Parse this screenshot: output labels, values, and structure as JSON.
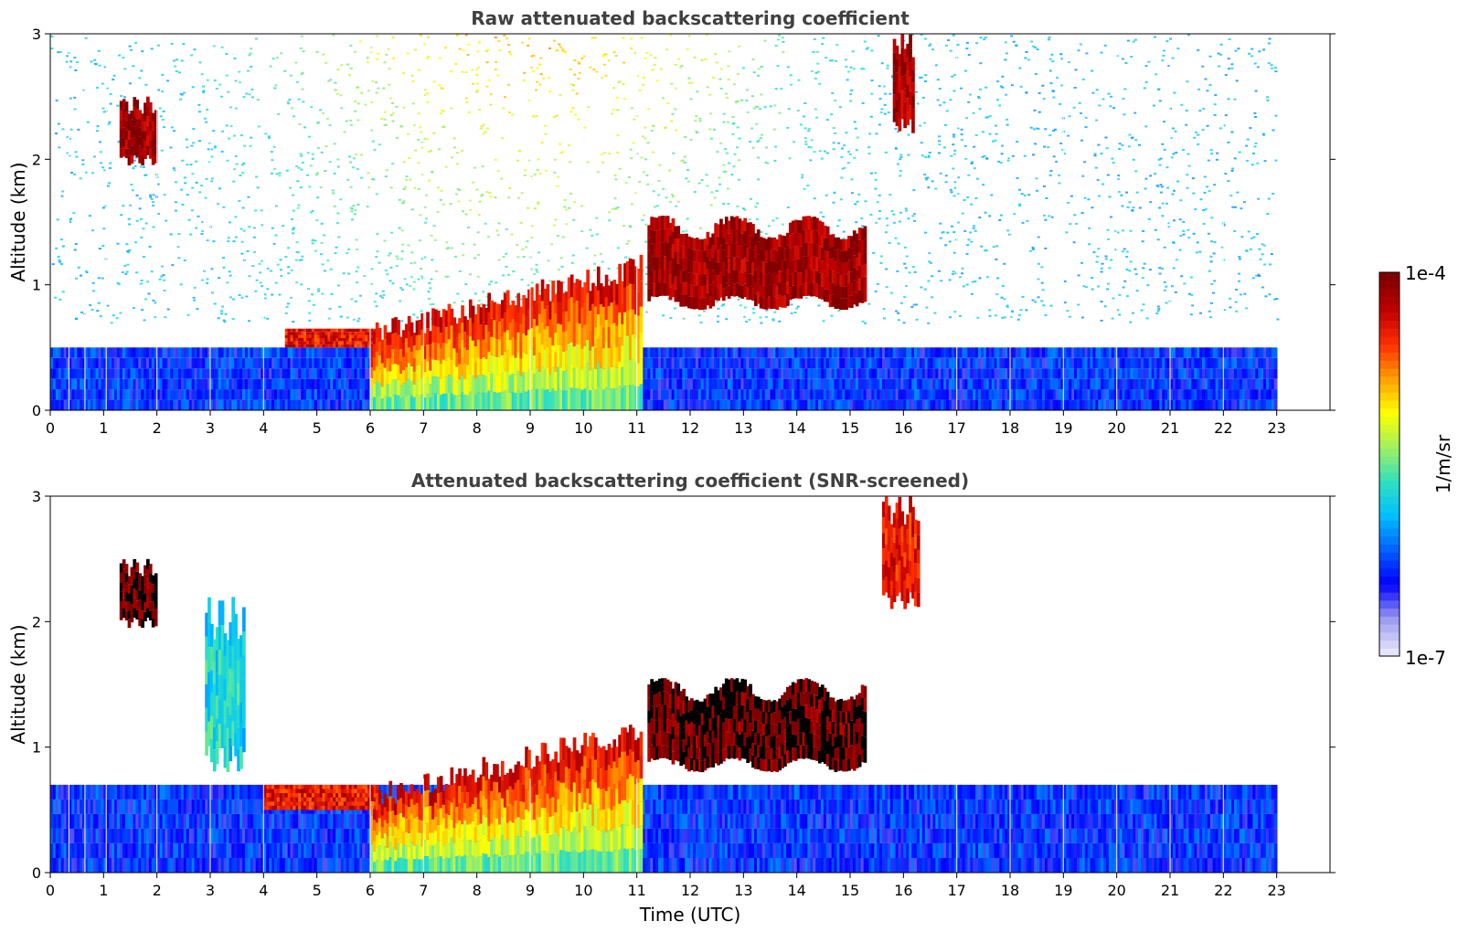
{
  "chart_data": [
    {
      "type": "heatmap",
      "title": "Raw attenuated backscattering coefficient",
      "xlabel": "",
      "ylabel": "Altitude (km)",
      "xlim": [
        0,
        24
      ],
      "ylim": [
        0,
        3
      ],
      "xticks": [
        "0",
        "1",
        "2",
        "3",
        "4",
        "5",
        "6",
        "7",
        "8",
        "9",
        "10",
        "11",
        "12",
        "13",
        "14",
        "15",
        "16",
        "17",
        "18",
        "19",
        "20",
        "21",
        "22",
        "23"
      ],
      "yticks": [
        "0",
        "1",
        "2",
        "3"
      ],
      "data_extent_hours": [
        0,
        23
      ],
      "features": [
        {
          "kind": "noisy-background",
          "t0": 0,
          "t1": 23,
          "h0": 0.7,
          "h1": 3.0,
          "level": "low-mid"
        },
        {
          "kind": "surface-layer",
          "t0": 0,
          "t1": 23,
          "h0": 0,
          "h1": 0.5,
          "level": "low"
        },
        {
          "kind": "aerosol-layer",
          "t0": 4.4,
          "t1": 6.1,
          "h0": 0.5,
          "h1": 0.65,
          "level": "high"
        },
        {
          "kind": "boundary-layer-plume",
          "t0": 6.0,
          "t1": 11.1,
          "h0": 0,
          "h1": 1.2,
          "level": "mid-high"
        },
        {
          "kind": "cloud",
          "t0": 1.3,
          "t1": 2.0,
          "h0": 1.95,
          "h1": 2.5,
          "level": "very-high"
        },
        {
          "kind": "cloud",
          "t0": 11.2,
          "t1": 15.3,
          "h0": 0.8,
          "h1": 1.55,
          "level": "very-high"
        },
        {
          "kind": "cloud",
          "t0": 15.8,
          "t1": 16.2,
          "h0": 2.2,
          "h1": 3.0,
          "level": "very-high"
        }
      ]
    },
    {
      "type": "heatmap",
      "title": "Attenuated backscattering coefficient (SNR-screened)",
      "xlabel": "Time (UTC)",
      "ylabel": "Altitude (km)",
      "xlim": [
        0,
        24
      ],
      "ylim": [
        0,
        3
      ],
      "xticks": [
        "0",
        "1",
        "2",
        "3",
        "4",
        "5",
        "6",
        "7",
        "8",
        "9",
        "10",
        "11",
        "12",
        "13",
        "14",
        "15",
        "16",
        "17",
        "18",
        "19",
        "20",
        "21",
        "22",
        "23"
      ],
      "yticks": [
        "0",
        "1",
        "2",
        "3"
      ],
      "data_extent_hours": [
        0,
        23
      ],
      "features": [
        {
          "kind": "surface-layer",
          "t0": 0,
          "t1": 23,
          "h0": 0,
          "h1": 0.7,
          "level": "low"
        },
        {
          "kind": "aerosol-layer",
          "t0": 4.0,
          "t1": 6.1,
          "h0": 0.5,
          "h1": 0.7,
          "level": "high"
        },
        {
          "kind": "boundary-layer-plume",
          "t0": 6.0,
          "t1": 11.1,
          "h0": 0,
          "h1": 1.2,
          "level": "mid-high"
        },
        {
          "kind": "cloud",
          "t0": 1.3,
          "t1": 2.0,
          "h0": 1.95,
          "h1": 2.5,
          "level": "saturated"
        },
        {
          "kind": "plume",
          "t0": 2.9,
          "t1": 3.6,
          "h0": 0.8,
          "h1": 2.2,
          "level": "low-mid"
        },
        {
          "kind": "cloud",
          "t0": 11.2,
          "t1": 15.3,
          "h0": 0.8,
          "h1": 1.55,
          "level": "saturated"
        },
        {
          "kind": "cloud",
          "t0": 15.6,
          "t1": 16.3,
          "h0": 2.1,
          "h1": 3.0,
          "level": "high"
        }
      ]
    }
  ],
  "colorbar": {
    "max_label": "1e-4",
    "min_label": "1e-7",
    "unit_label": "1/m/sr",
    "colormap": "jet",
    "colors": [
      "#e6e6fa",
      "#9999ee",
      "#0000ff",
      "#0060ff",
      "#00c0ff",
      "#30e0c0",
      "#a0f060",
      "#ffff00",
      "#ffa000",
      "#ff3000",
      "#c00000",
      "#800000"
    ]
  }
}
